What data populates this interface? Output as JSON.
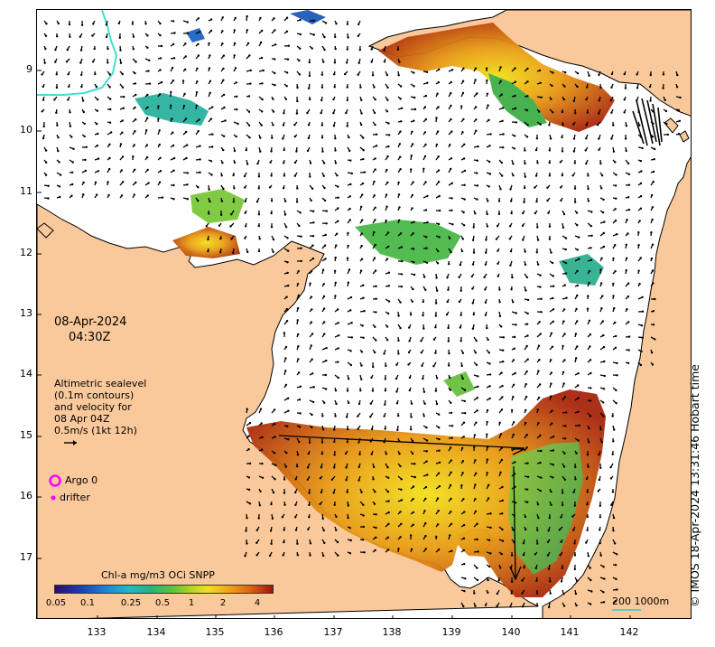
{
  "map": {
    "title_date": "08-Apr-2024",
    "title_time": "04:30Z",
    "y_axis_ticks": [
      "9",
      "10",
      "11",
      "12",
      "13",
      "14",
      "15",
      "16",
      "17"
    ],
    "x_axis_ticks": [
      "133",
      "134",
      "135",
      "136",
      "137",
      "138",
      "139",
      "140",
      "141",
      "142"
    ]
  },
  "legend": {
    "line1": "Altimetric sealevel",
    "line2": "(0.1m contours)",
    "line3": "and velocity for",
    "line4": "08 Apr 04Z",
    "line5": "0.5m/s (1kt 12h)",
    "argo_label": "Argo 0",
    "drifter_label": "drifter"
  },
  "colorbar": {
    "label": "Chl-a mg/m3 OCi SNPP",
    "ticks": [
      "0.05",
      "0.1",
      "0.25",
      "0.5",
      "1",
      "2",
      "4"
    ]
  },
  "scale": {
    "label": "200  1000m"
  },
  "credit": {
    "text": "© IMOS 18-Apr-2024 13:31:46 Hobart time"
  },
  "colors": {
    "land": "#f9c99b",
    "ocean": "#ffffff",
    "argo": "#ff00ff",
    "drifter": "#ff00ff",
    "contour_200m": "#40e0d0"
  }
}
